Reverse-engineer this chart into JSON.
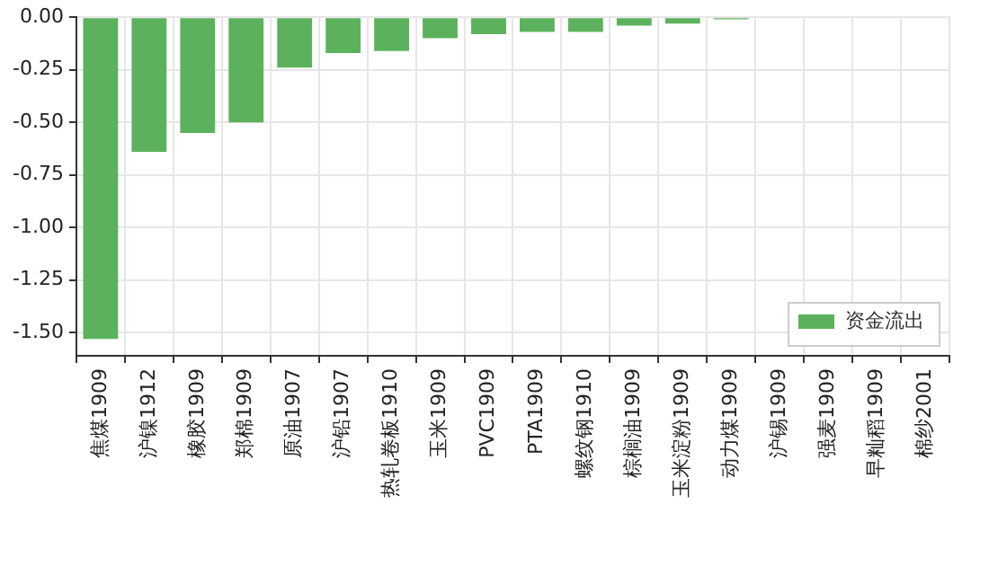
{
  "chart_data": {
    "type": "bar",
    "categories": [
      "焦煤1909",
      "沪镍1912",
      "橡胶1909",
      "郑棉1909",
      "原油1907",
      "沪铅1907",
      "热轧卷板1910",
      "玉米1909",
      "PVC1909",
      "PTA1909",
      "螺纹钢1910",
      "棕榈油1909",
      "玉米淀粉1909",
      "动力煤1909",
      "沪锡1909",
      "强麦1909",
      "早籼稻1909",
      "棉纱2001"
    ],
    "series": [
      {
        "name": "资金流出",
        "color": "#5cb25c",
        "values": [
          -1.53,
          -0.64,
          -0.55,
          -0.5,
          -0.24,
          -0.17,
          -0.16,
          -0.1,
          -0.08,
          -0.07,
          -0.07,
          -0.04,
          -0.03,
          -0.01,
          null,
          null,
          null,
          null
        ]
      }
    ],
    "ylim": [
      -1.61,
      0
    ],
    "yticks": [
      {
        "value": 0,
        "label": "0.00"
      },
      {
        "value": -0.25,
        "label": "-0.25"
      },
      {
        "value": -0.5,
        "label": "-0.50"
      },
      {
        "value": -0.75,
        "label": "-0.75"
      },
      {
        "value": -1,
        "label": "-1.00"
      },
      {
        "value": -1.25,
        "label": "-1.25"
      },
      {
        "value": -1.5,
        "label": "-1.50"
      }
    ],
    "grid": true,
    "legend": "bottom right"
  }
}
